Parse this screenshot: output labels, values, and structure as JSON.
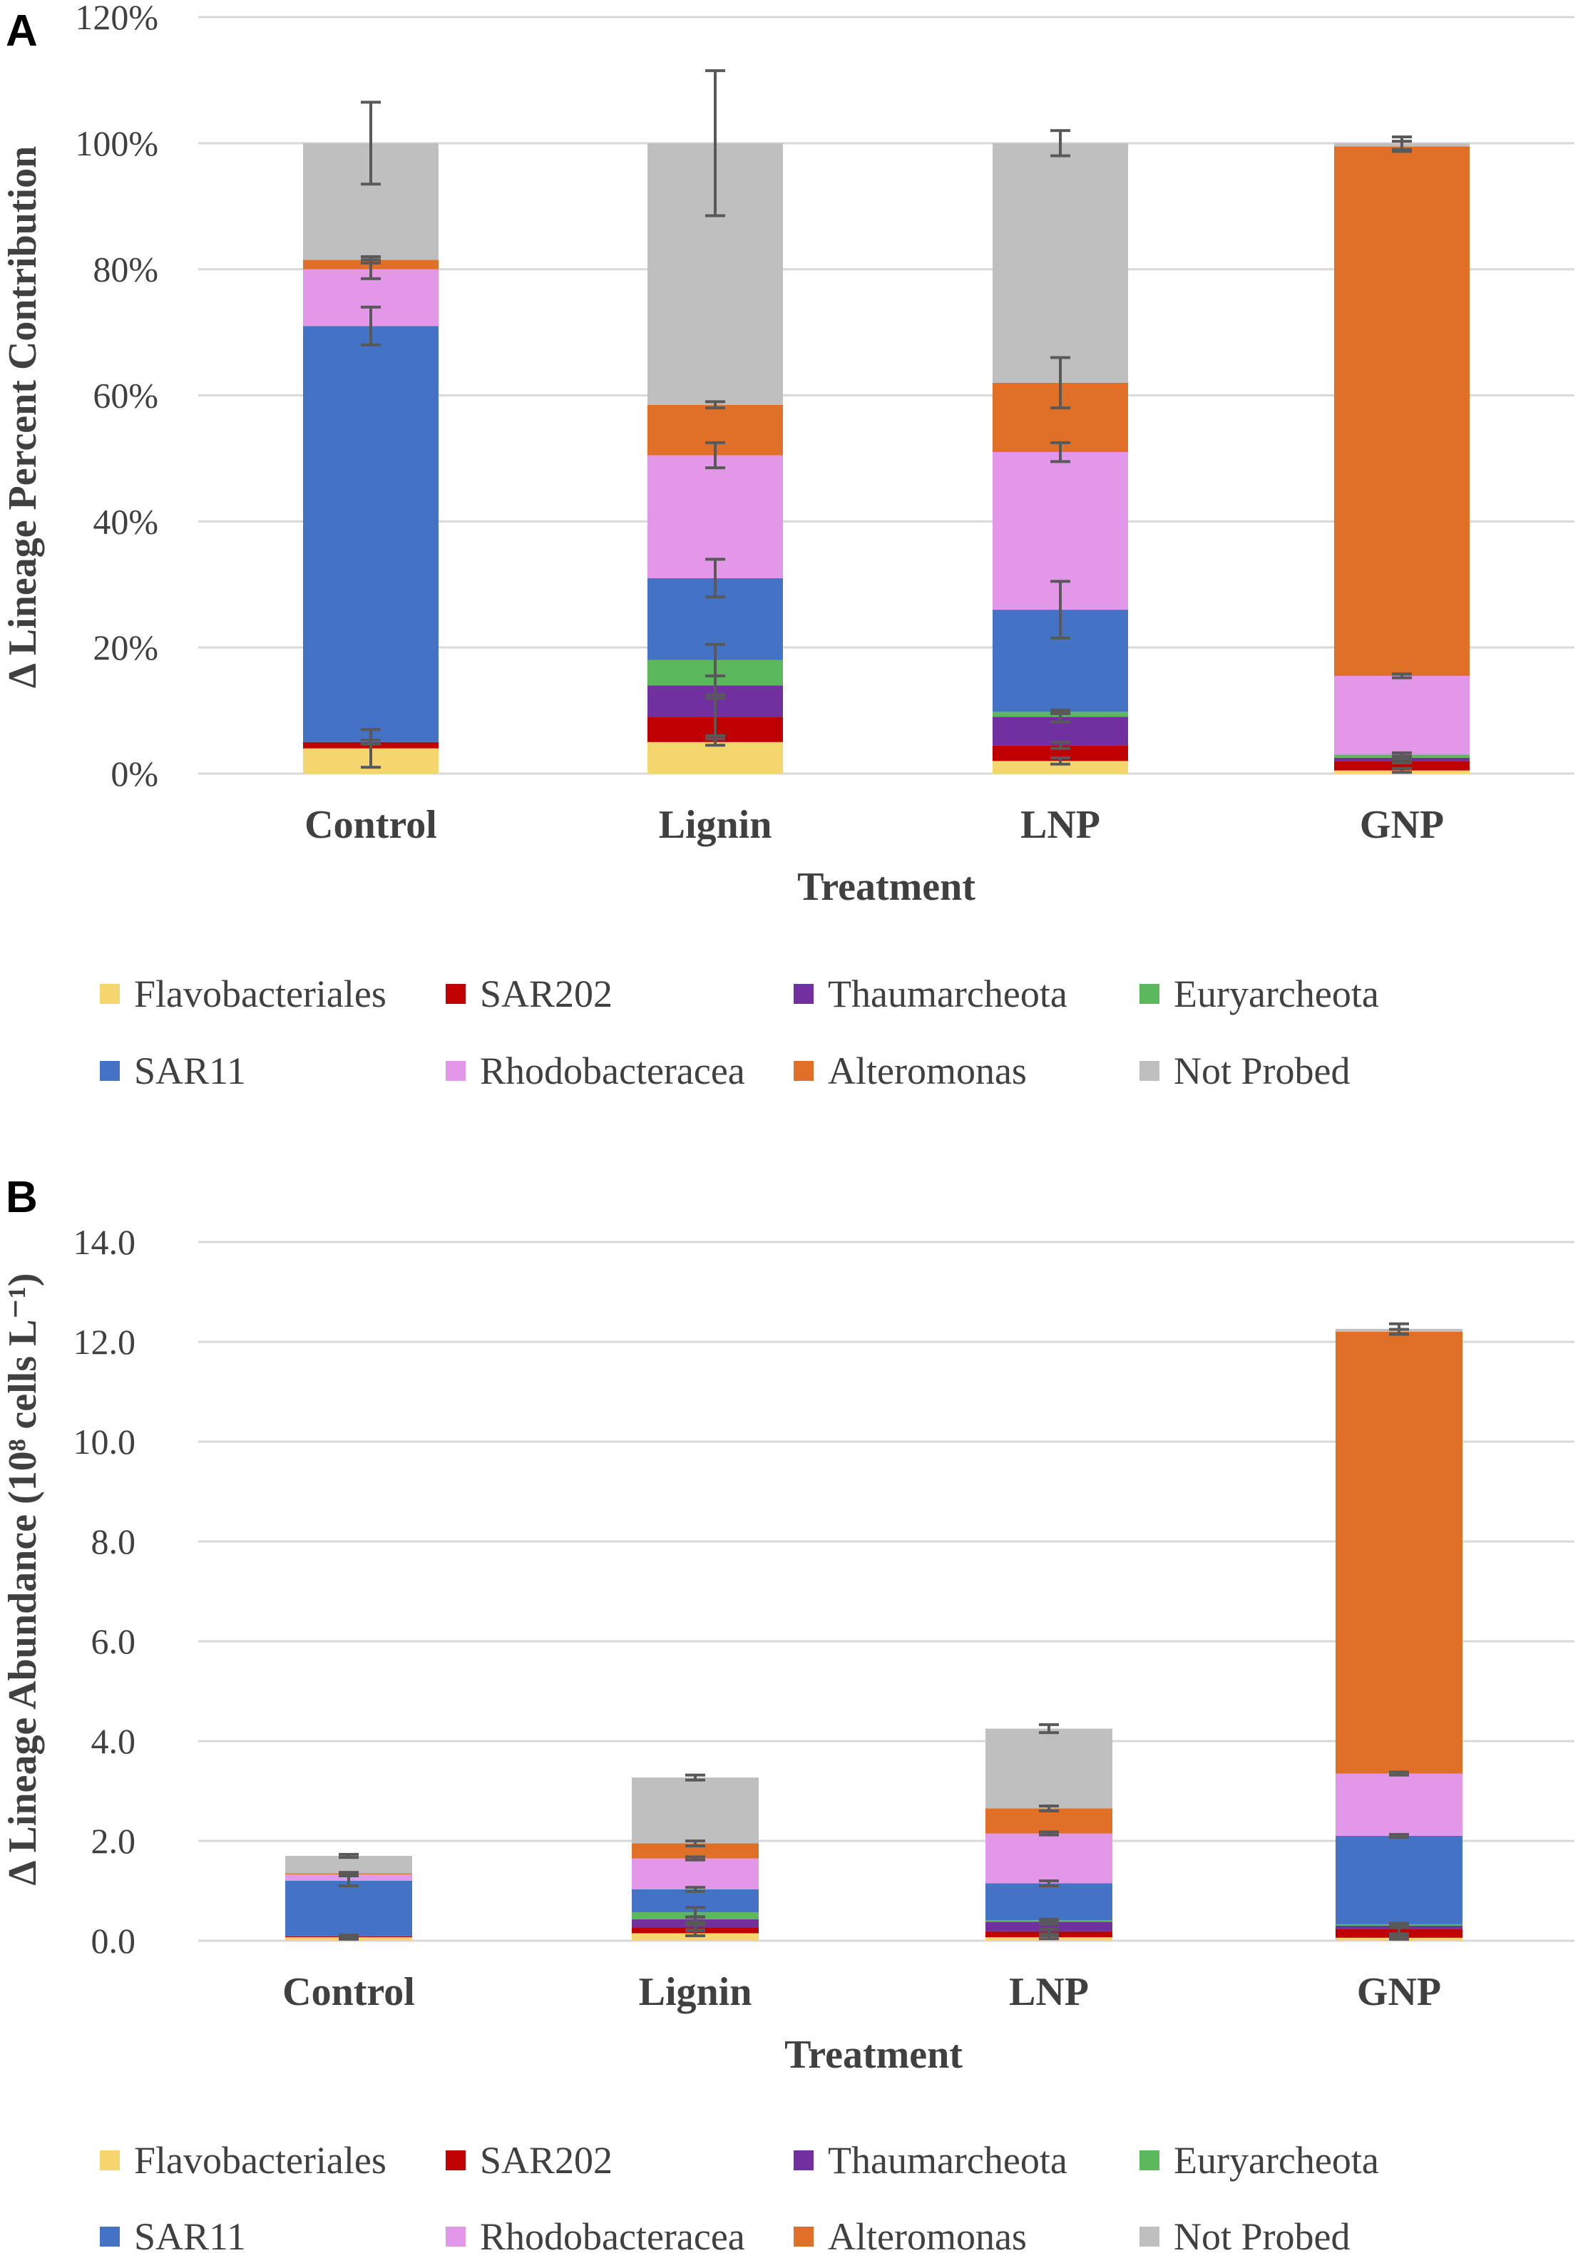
{
  "chart_data": [
    {
      "panel": "A",
      "type": "bar",
      "stacked": true,
      "xlabel": "Treatment",
      "ylabel": "Δ Lineage Percent Contribution",
      "ylim": [
        0,
        120
      ],
      "yticks": [
        0,
        20,
        40,
        60,
        80,
        100,
        120
      ],
      "ytick_labels": [
        "0%",
        "20%",
        "40%",
        "60%",
        "80%",
        "100%",
        "120%"
      ],
      "categories": [
        "Control",
        "Lignin",
        "LNP",
        "GNP"
      ],
      "series": [
        {
          "name": "Flavobacteriales",
          "color": "#F5D56E",
          "values": [
            4,
            5,
            2,
            0.5
          ],
          "errors": [
            3,
            0.5,
            0.5,
            0.3
          ]
        },
        {
          "name": "SAR202",
          "color": "#C00000",
          "values": [
            1,
            4,
            2.5,
            1.5
          ],
          "errors": [
            0.3,
            3,
            0.5,
            0.3
          ]
        },
        {
          "name": "Thaumarcheota",
          "color": "#7030A0",
          "values": [
            0,
            5,
            4.5,
            0.5
          ],
          "errors": [
            0,
            1.5,
            0.8,
            0.3
          ]
        },
        {
          "name": "Euryarcheota",
          "color": "#5CB85C",
          "values": [
            0,
            4,
            0.8,
            0.5
          ],
          "errors": [
            0,
            2.5,
            0.3,
            0.3
          ]
        },
        {
          "name": "SAR11",
          "color": "#4472C4",
          "values": [
            66,
            13,
            16.2,
            0
          ],
          "errors": [
            3,
            3,
            4.5,
            0
          ]
        },
        {
          "name": "Rhodobacteracea",
          "color": "#E397E8",
          "values": [
            9,
            19.5,
            25,
            12.5
          ],
          "errors": [
            1.5,
            2,
            1.5,
            0.3
          ]
        },
        {
          "name": "Alteromonas",
          "color": "#E07028",
          "values": [
            1.5,
            8,
            11,
            84
          ],
          "errors": [
            0.5,
            0.5,
            4,
            0.8
          ]
        },
        {
          "name": "Not Probed",
          "color": "#BFBFBF",
          "values": [
            18.5,
            41.5,
            38,
            0.5
          ],
          "errors": [
            6.5,
            11.5,
            2,
            1
          ]
        }
      ]
    },
    {
      "panel": "B",
      "type": "bar",
      "stacked": true,
      "xlabel": "Treatment",
      "ylabel": "Δ Lineage Abundance (10⁸ cells L⁻¹)",
      "ylim": [
        0,
        14
      ],
      "yticks": [
        0,
        2,
        4,
        6,
        8,
        10,
        12,
        14
      ],
      "ytick_labels": [
        "0.0",
        "2.0",
        "4.0",
        "6.0",
        "8.0",
        "10.0",
        "12.0",
        "14.0"
      ],
      "categories": [
        "Control",
        "Lignin",
        "LNP",
        "GNP"
      ],
      "series": [
        {
          "name": "Flavobacteriales",
          "color": "#F5D56E",
          "values": [
            0.07,
            0.15,
            0.07,
            0.06
          ],
          "errors": [
            0.04,
            0.05,
            0.03,
            0.03
          ]
        },
        {
          "name": "SAR202",
          "color": "#C00000",
          "values": [
            0.02,
            0.12,
            0.12,
            0.18
          ],
          "errors": [
            0.02,
            0.05,
            0.05,
            0.1
          ]
        },
        {
          "name": "Thaumarcheota",
          "color": "#7030A0",
          "values": [
            0,
            0.16,
            0.19,
            0.06
          ],
          "errors": [
            0,
            0.05,
            0.05,
            0.03
          ]
        },
        {
          "name": "Euryarcheota",
          "color": "#5CB85C",
          "values": [
            0,
            0.14,
            0.03,
            0.03
          ],
          "errors": [
            0,
            0.1,
            0.02,
            0.02
          ]
        },
        {
          "name": "SAR11",
          "color": "#4472C4",
          "values": [
            1.11,
            0.46,
            0.74,
            1.77
          ],
          "errors": [
            0.1,
            0.04,
            0.05,
            0.03
          ]
        },
        {
          "name": "Rhodobacteracea",
          "color": "#E397E8",
          "values": [
            0.13,
            0.62,
            1.0,
            1.25
          ],
          "errors": [
            0.02,
            0.03,
            0.03,
            0.03
          ]
        },
        {
          "name": "Alteromonas",
          "color": "#E07028",
          "values": [
            0.02,
            0.3,
            0.5,
            8.85
          ],
          "errors": [
            0.02,
            0.05,
            0.05,
            0.05
          ]
        },
        {
          "name": "Not Probed",
          "color": "#BFBFBF",
          "values": [
            0.35,
            1.32,
            1.6,
            0.06
          ],
          "errors": [
            0.03,
            0.05,
            0.08,
            0.1
          ]
        }
      ]
    }
  ]
}
